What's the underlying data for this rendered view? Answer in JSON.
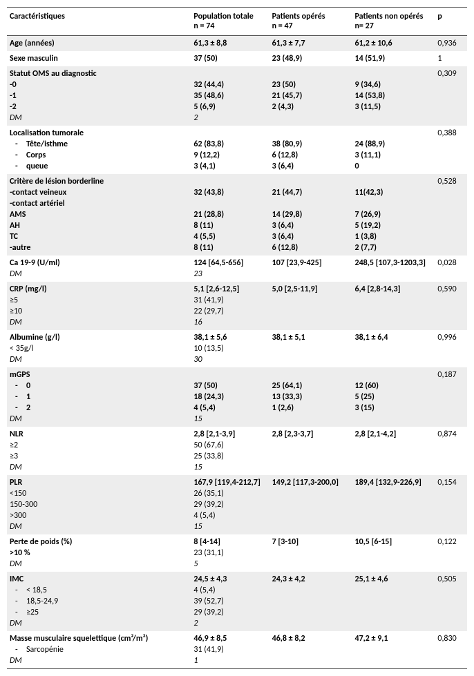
{
  "header": {
    "col0": "Caractéristiques",
    "col1a": "Population totale",
    "col1b": "n = 74",
    "col2a": "Patients opérés",
    "col2b": "n = 47",
    "col3a": "Patients non opérés",
    "col3b": "n= 27",
    "col4": "p"
  },
  "rows": [
    {
      "shade": true,
      "first": true,
      "last": true,
      "c0": "Age (années)",
      "c0b": true,
      "c1": "61,3 ± 8,8",
      "c1b": true,
      "c2": "61,3 ± 7,7",
      "c2b": true,
      "c3": "61,2 ± 10,6",
      "c3b": true,
      "c4": "0,936"
    },
    {
      "shade": false,
      "first": true,
      "last": true,
      "c0": "Sexe masculin",
      "c0b": true,
      "c1": "37 (50)",
      "c1b": true,
      "c2": "23 (48,9)",
      "c2b": true,
      "c3": "14 (51,9)",
      "c3b": true,
      "c4": "1"
    },
    {
      "shade": true,
      "first": true,
      "c0": "Statut OMS au diagnostic",
      "c0b": true,
      "c1": "",
      "c2": "",
      "c3": "",
      "c4": "0,309"
    },
    {
      "shade": true,
      "c0": "-0",
      "c0b": true,
      "c1": "32 (44,4)",
      "c1b": true,
      "c2": "23 (50)",
      "c2b": true,
      "c3": "9 (34,6)",
      "c3b": true,
      "c4": ""
    },
    {
      "shade": true,
      "c0": "-1",
      "c0b": true,
      "c1": "35 (48,6)",
      "c1b": true,
      "c2": "21 (45,7)",
      "c2b": true,
      "c3": "14 (53,8)",
      "c3b": true,
      "c4": ""
    },
    {
      "shade": true,
      "c0": "-2",
      "c0b": true,
      "c1": "5 (6,9)",
      "c1b": true,
      "c2": "2 (4,3)",
      "c2b": true,
      "c3": "3 (11,5)",
      "c3b": true,
      "c4": ""
    },
    {
      "shade": true,
      "last": true,
      "c0": "DM",
      "c0i": true,
      "c1": "2",
      "c1i": true,
      "c2": "",
      "c3": "",
      "c4": ""
    },
    {
      "shade": false,
      "first": true,
      "c0": "Localisation tumorale",
      "c0b": true,
      "c1": "",
      "c2": "",
      "c3": "",
      "c4": "0,388"
    },
    {
      "shade": false,
      "sub": true,
      "bul": true,
      "c0": "Tête/isthme",
      "c0b": true,
      "c1": "62 (83,8)",
      "c1b": true,
      "c2": "38 (80,9)",
      "c2b": true,
      "c3": "24 (88,9)",
      "c3b": true,
      "c4": ""
    },
    {
      "shade": false,
      "sub": true,
      "bul": true,
      "c0": "Corps",
      "c0b": true,
      "c1": "9 (12,2)",
      "c1b": true,
      "c2": "6 (12,8)",
      "c2b": true,
      "c3": "3 (11,1)",
      "c3b": true,
      "c4": ""
    },
    {
      "shade": false,
      "last": true,
      "sub": true,
      "bul": true,
      "c0": "queue",
      "c0b": true,
      "c1": "3 (4,1)",
      "c1b": true,
      "c2": "3 (6,4)",
      "c2b": true,
      "c3": "0",
      "c3b": true,
      "c4": ""
    },
    {
      "shade": true,
      "first": true,
      "c0": "Critère de lésion borderline",
      "c0b": true,
      "c1": "",
      "c2": "",
      "c3": "",
      "c4": "0,528"
    },
    {
      "shade": true,
      "c0": "-contact veineux",
      "c0b": true,
      "c1": "32 (43,8)",
      "c1b": true,
      "c2": "21 (44,7)",
      "c2b": true,
      "c3": "11(42,3)",
      "c3b": true,
      "c4": ""
    },
    {
      "shade": true,
      "c0": "-contact artériel",
      "c0b": true,
      "c1": "",
      "c2": "",
      "c3": "",
      "c4": ""
    },
    {
      "shade": true,
      "c0": "AMS",
      "c0b": true,
      "c1": "21 (28,8)",
      "c1b": true,
      "c2": "14 (29,8)",
      "c2b": true,
      "c3": "7 (26,9)",
      "c3b": true,
      "c4": ""
    },
    {
      "shade": true,
      "c0": "AH",
      "c0b": true,
      "c1": "8 (11)",
      "c1b": true,
      "c2": "3 (6,4)",
      "c2b": true,
      "c3": "5 (19,2)",
      "c3b": true,
      "c4": ""
    },
    {
      "shade": true,
      "c0": "TC",
      "c0b": true,
      "c1": "4 (5,5)",
      "c1b": true,
      "c2": "3 (6,4)",
      "c2b": true,
      "c3": "1 (3,8)",
      "c3b": true,
      "c4": ""
    },
    {
      "shade": true,
      "last": true,
      "c0": "-autre",
      "c0b": true,
      "c1": "8 (11)",
      "c1b": true,
      "c2": "6 (12,8)",
      "c2b": true,
      "c3": "2 (7,7)",
      "c3b": true,
      "c4": ""
    },
    {
      "shade": false,
      "first": true,
      "c0": "Ca 19-9 (U/ml)",
      "c0b": true,
      "c1": "124 [64,5-656]",
      "c1b": true,
      "c2": "107 [23,9-425]",
      "c2b": true,
      "c3": "248,5 [107,3-1203,3]",
      "c3b": true,
      "c4": "0,028"
    },
    {
      "shade": false,
      "last": true,
      "c0": "DM",
      "c0i": true,
      "c1": "23",
      "c1i": true,
      "c2": "",
      "c3": "",
      "c4": ""
    },
    {
      "shade": true,
      "first": true,
      "c0": "CRP (mg/l)",
      "c0b": true,
      "c1": "5,1 [2,6-12,5]",
      "c1b": true,
      "c2": "5,0 [2,5-11,9]",
      "c2b": true,
      "c3": "6,4 [2,8-14,3]",
      "c3b": true,
      "c4": "0,590"
    },
    {
      "shade": true,
      "c0": "≥5",
      "c1": "31 (41,9)",
      "c2": "",
      "c3": "",
      "c4": ""
    },
    {
      "shade": true,
      "c0": "≥10",
      "c1": "22 (29,7)",
      "c2": "",
      "c3": "",
      "c4": ""
    },
    {
      "shade": true,
      "last": true,
      "c0": "DM",
      "c0i": true,
      "c1": "16",
      "c1i": true,
      "c2": "",
      "c3": "",
      "c4": ""
    },
    {
      "shade": false,
      "first": true,
      "c0": "Albumine (g/l)",
      "c0b": true,
      "c1": "38,1 ± 5,6",
      "c1b": true,
      "c2": "38,1 ± 5,1",
      "c2b": true,
      "c3": "38,1 ± 6,4",
      "c3b": true,
      "c4": "0,996"
    },
    {
      "shade": false,
      "c0": "< 35g/l",
      "c1": "10 (13,5)",
      "c2": "",
      "c3": "",
      "c4": ""
    },
    {
      "shade": false,
      "last": true,
      "c0": "DM",
      "c0i": true,
      "c1": "30",
      "c1i": true,
      "c2": "",
      "c3": "",
      "c4": ""
    },
    {
      "shade": true,
      "first": true,
      "c0": "mGPS",
      "c0b": true,
      "c1": "",
      "c2": "",
      "c3": "",
      "c4": "0,187"
    },
    {
      "shade": true,
      "sub": true,
      "bul": true,
      "c0": "0",
      "c0b": true,
      "c1": "37 (50)",
      "c1b": true,
      "c2": "25 (64,1)",
      "c2b": true,
      "c3": "12 (60)",
      "c3b": true,
      "c4": ""
    },
    {
      "shade": true,
      "sub": true,
      "bul": true,
      "c0": "1",
      "c0b": true,
      "c1": "18 (24,3)",
      "c1b": true,
      "c2": "13 (33,3)",
      "c2b": true,
      "c3": "5 (25)",
      "c3b": true,
      "c4": ""
    },
    {
      "shade": true,
      "sub": true,
      "bul": true,
      "c0": "2",
      "c0b": true,
      "c1": "4 (5,4)",
      "c1b": true,
      "c2": "1 (2,6)",
      "c2b": true,
      "c3": "3 (15)",
      "c3b": true,
      "c4": ""
    },
    {
      "shade": true,
      "last": true,
      "c0": "DM",
      "c0i": true,
      "c1": "15",
      "c1i": true,
      "c2": "",
      "c3": "",
      "c4": ""
    },
    {
      "shade": false,
      "first": true,
      "c0": "NLR",
      "c0b": true,
      "c1": "2,8 [2,1-3,9]",
      "c1b": true,
      "c2": "2,8 [2,3-3,7]",
      "c2b": true,
      "c3": "2,8 [2,1-4,2]",
      "c3b": true,
      "c4": "0,874"
    },
    {
      "shade": false,
      "c0": "≥2",
      "c1": "50 (67,6)",
      "c2": "",
      "c3": "",
      "c4": ""
    },
    {
      "shade": false,
      "c0": "≥3",
      "c1": "25 (33,8)",
      "c2": "",
      "c3": "",
      "c4": ""
    },
    {
      "shade": false,
      "last": true,
      "c0": "DM",
      "c0i": true,
      "c1": "15",
      "c1i": true,
      "c2": "",
      "c3": "",
      "c4": ""
    },
    {
      "shade": true,
      "first": true,
      "c0": "PLR",
      "c0b": true,
      "c1": "167,9 [119,4-212,7]",
      "c1b": true,
      "c2": "149,2 [117,3-200,0]",
      "c2b": true,
      "c3": "189,4 [132,9-226,9]",
      "c3b": true,
      "c4": "0,154"
    },
    {
      "shade": true,
      "c0": "<150",
      "c1": "26 (35,1)",
      "c2": "",
      "c3": "",
      "c4": ""
    },
    {
      "shade": true,
      "c0": "150-300",
      "c1": "29 (39,2)",
      "c2": "",
      "c3": "",
      "c4": ""
    },
    {
      "shade": true,
      "c0": ">300",
      "c1": "4 (5,4)",
      "c2": "",
      "c3": "",
      "c4": ""
    },
    {
      "shade": true,
      "last": true,
      "c0": "DM",
      "c0i": true,
      "c1": "15",
      "c1i": true,
      "c2": "",
      "c3": "",
      "c4": ""
    },
    {
      "shade": false,
      "first": true,
      "c0": "Perte de poids (%)",
      "c0b": true,
      "c1": "8 [4-14]",
      "c1b": true,
      "c2": "7 [3-10]",
      "c2b": true,
      "c3": "10,5 [6-15]",
      "c3b": true,
      "c4": "0,122"
    },
    {
      "shade": false,
      "c0": ">10 %",
      "c0b": true,
      "c1": "23 (31,1)",
      "c2": "",
      "c3": "",
      "c4": ""
    },
    {
      "shade": false,
      "last": true,
      "c0": "DM",
      "c0i": true,
      "c1": "5",
      "c1i": true,
      "c2": "",
      "c3": "",
      "c4": ""
    },
    {
      "shade": true,
      "first": true,
      "c0": "IMC",
      "c0b": true,
      "c1": "24,5 ± 4,3",
      "c1b": true,
      "c2": "24,3 ± 4,2",
      "c2b": true,
      "c3": "25,1 ± 4,6",
      "c3b": true,
      "c4": "0,505"
    },
    {
      "shade": true,
      "sub": true,
      "bul": true,
      "c0": "< 18,5",
      "c1": "4 (5,4)",
      "c2": "",
      "c3": "",
      "c4": ""
    },
    {
      "shade": true,
      "sub": true,
      "bul": true,
      "c0": "18,5-24,9",
      "c1": "39 (52,7)",
      "c2": "",
      "c3": "",
      "c4": ""
    },
    {
      "shade": true,
      "sub": true,
      "bul": true,
      "c0": "≥25",
      "c1": "29 (39,2)",
      "c2": "",
      "c3": "",
      "c4": ""
    },
    {
      "shade": true,
      "last": true,
      "c0": "DM",
      "c0i": true,
      "c1": "2",
      "c1i": true,
      "c2": "",
      "c3": "",
      "c4": ""
    },
    {
      "shade": false,
      "first": true,
      "c0": "Masse musculaire squelettique (cm²/m²)",
      "c0b": true,
      "c1": "46,9 ± 8,5",
      "c1b": true,
      "c2": "46,8 ± 8,2",
      "c2b": true,
      "c3": "47,2 ± 9,1",
      "c3b": true,
      "c4": "0,830"
    },
    {
      "shade": false,
      "sub": true,
      "bul": true,
      "c0": "Sarcopénie",
      "c1": "31 (41,9)",
      "c2": "",
      "c3": "",
      "c4": ""
    },
    {
      "shade": false,
      "last": true,
      "bottom": true,
      "c0": "DM",
      "c0i": true,
      "c1": "1",
      "c1i": true,
      "c2": "",
      "c3": "",
      "c4": ""
    }
  ]
}
